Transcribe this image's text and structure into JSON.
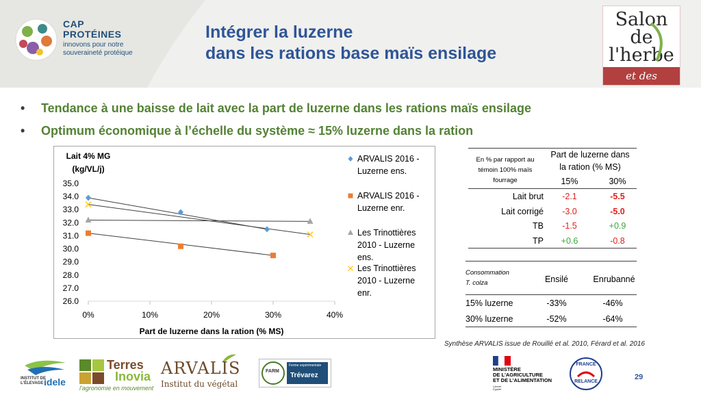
{
  "header": {
    "title_line1": "Intégrer la luzerne",
    "title_line2": "dans les rations base maïs ensilage",
    "cap_logo": {
      "line1": "CAP",
      "line2": "PROTÉINES",
      "tagline1": "innovons pour notre",
      "tagline2": "souveraineté protéique"
    },
    "salon_logo": {
      "line1": "Salon",
      "line2": "de",
      "line3": "l'herbe",
      "band": "et des fourrages"
    }
  },
  "bullets": [
    {
      "text": "Tendance à une baisse de lait avec la part de luzerne dans les rations maïs ensilage"
    },
    {
      "text": "Optimum économique à l’échelle du système ≈ 15% luzerne dans la ration"
    }
  ],
  "chart_data": {
    "type": "scatter",
    "ylabel_line1": "Lait 4% MG",
    "ylabel_line2": "(kg/VL/j)",
    "xlabel": "Part de luzerne dans la ration (% MS)",
    "xlim": [
      0,
      40
    ],
    "ylim": [
      26.0,
      35.0
    ],
    "x_ticks": [
      "0%",
      "10%",
      "20%",
      "30%",
      "40%"
    ],
    "y_ticks": [
      "26.0",
      "27.0",
      "28.0",
      "29.0",
      "30.0",
      "31.0",
      "32.0",
      "33.0",
      "34.0",
      "35.0"
    ],
    "series": [
      {
        "name_lines": [
          "ARVALIS 2016 -",
          "Luzerne ens."
        ],
        "marker": "diamond",
        "color": "#5b9bd5",
        "x": [
          0,
          15,
          29
        ],
        "y": [
          33.9,
          32.8,
          31.5
        ],
        "trend": [
          [
            0,
            33.9
          ],
          [
            29,
            31.5
          ]
        ]
      },
      {
        "name_lines": [
          "ARVALIS 2016 -",
          "Luzerne enr."
        ],
        "marker": "square",
        "color": "#ed7d31",
        "x": [
          0,
          15,
          30
        ],
        "y": [
          31.2,
          30.2,
          29.5
        ],
        "trend": [
          [
            0,
            31.2
          ],
          [
            30,
            29.5
          ]
        ]
      },
      {
        "name_lines": [
          "Les Trinottières",
          "2010 - Luzerne",
          "ens."
        ],
        "marker": "triangle",
        "color": "#a5a5a5",
        "x": [
          0,
          36
        ],
        "y": [
          32.2,
          32.1
        ],
        "trend": [
          [
            0,
            32.2
          ],
          [
            36,
            32.1
          ]
        ]
      },
      {
        "name_lines": [
          "Les Trinottières",
          "2010 - Luzerne",
          "enr."
        ],
        "marker": "x",
        "color": "#ffc000",
        "x": [
          0,
          36
        ],
        "y": [
          33.4,
          31.1
        ],
        "trend": [
          [
            0,
            33.4
          ],
          [
            36,
            31.1
          ]
        ]
      }
    ]
  },
  "table1": {
    "note_lines": [
      "En % par rapport au",
      "témoin 100% maïs",
      "fourrage"
    ],
    "header_lines": [
      "Part de luzerne dans",
      "la ration (% MS)"
    ],
    "cols": [
      "15%",
      "30%"
    ],
    "rows": [
      {
        "label": "Lait brut",
        "v1": "-2.1",
        "v1_style": "red",
        "v2": "-5.5",
        "v2_style": "redb"
      },
      {
        "label": "Lait corrigé",
        "v1": "-3.0",
        "v1_style": "red",
        "v2": "-5.0",
        "v2_style": "redb"
      },
      {
        "label": "TB",
        "v1": "-1.5",
        "v1_style": "red",
        "v2": "+0.9",
        "v2_style": "green"
      },
      {
        "label": "TP",
        "v1": "+0.6",
        "v1_style": "green",
        "v2": "-0.8",
        "v2_style": "red"
      }
    ]
  },
  "table2": {
    "note_lines": [
      "Consommation",
      "T. colza"
    ],
    "cols": [
      "Ensilé",
      "Enrubanné"
    ],
    "rows": [
      {
        "label": "15% luzerne",
        "v1": "-33%",
        "v2": "-46%"
      },
      {
        "label": "30% luzerne",
        "v1": "-52%",
        "v2": "-64%"
      }
    ]
  },
  "source": "Synthèse ARVALIS issue de Rouillé et al. 2010, Férard et al. 2016",
  "footer": {
    "idele": {
      "line1": "INSTITUT DE",
      "line2": "L'ÉLEVAGE",
      "brand": "idele"
    },
    "terres_inovia": {
      "line1": "Terres",
      "line2": "Inovia",
      "tagline": "l'agronomie en mouvement"
    },
    "arvalis": {
      "brand": "ARVALIS",
      "tagline": "Institut du végétal"
    },
    "farm": {
      "brand": "FARM",
      "label": "Ferme expérimentale",
      "name": "Trévarez"
    },
    "ministere": {
      "line1": "MINISTÈRE",
      "line2": "DE L'AGRICULTURE",
      "line3": "ET DE L'ALIMENTATION",
      "motto1": "Liberté",
      "motto2": "Égalité",
      "motto3": "Fraternité"
    },
    "france_relance": {
      "line1": "FRANCE",
      "line2": "RELANCE"
    },
    "page_number": "29"
  },
  "colors": {
    "title": "#2e5597",
    "bullet": "#548235",
    "negative": "#e0201c",
    "positive": "#3aa63a"
  }
}
